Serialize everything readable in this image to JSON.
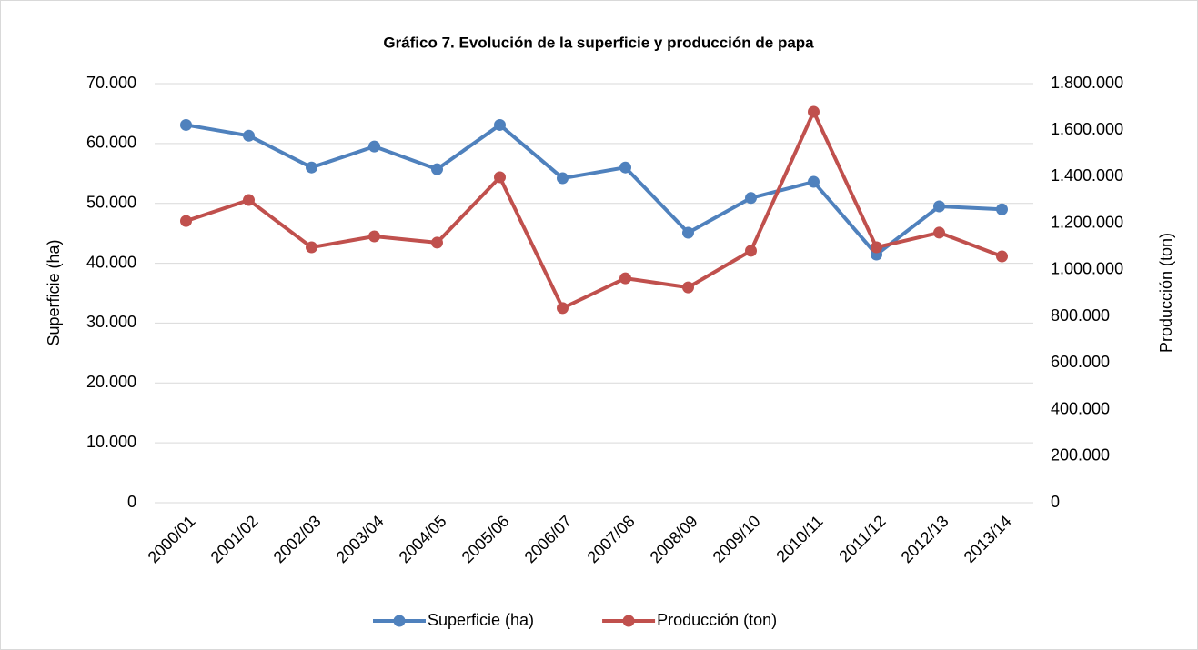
{
  "chart_data": {
    "type": "line",
    "title": "Gráfico 7. Evolución de la superficie y producción de papa",
    "y_label": "Superficie (ha)",
    "y2_label": "Producción (ton)",
    "categories": [
      "2000/01",
      "2001/02",
      "2002/03",
      "2003/04",
      "2004/05",
      "2005/06",
      "2006/07",
      "2007/08",
      "2008/09",
      "2009/10",
      "2010/11",
      "2011/12",
      "2012/13",
      "2013/14"
    ],
    "series": [
      {
        "name": "Superficie (ha)",
        "color": "#4f81bd",
        "values": [
          63100,
          61300,
          56000,
          59500,
          55700,
          63100,
          54200,
          56000,
          45100,
          50900,
          53600,
          41450,
          49500,
          49000
        ]
      },
      {
        "name": "Producción (ton)",
        "color": "#c0504d",
        "axis": "y2",
        "values": [
          1210000,
          1300000,
          1097000,
          1144000,
          1117000,
          1398000,
          836000,
          964000,
          925000,
          1082000,
          1679000,
          1097000,
          1160000,
          1058000
        ]
      }
    ],
    "ylim": [
      0,
      70000
    ],
    "yticks": [
      0,
      {
        "value": 10000,
        "label": "10.000"
      },
      {
        "value": 20000,
        "label": "20.000"
      },
      {
        "value": 30000,
        "label": "30.000"
      },
      {
        "value": 40000,
        "label": "40.000"
      },
      {
        "value": 50000,
        "label": "50.000"
      },
      {
        "value": 60000,
        "label": "60.000"
      },
      {
        "value": 70000,
        "label": "70.000"
      }
    ],
    "y2lim": [
      0,
      1800000
    ],
    "y2ticks": [
      0,
      {
        "value": 200000,
        "label": "200.000"
      },
      {
        "value": 400000,
        "label": "400.000"
      },
      {
        "value": 600000,
        "label": "600.000"
      },
      {
        "value": 800000,
        "label": "800.000"
      },
      {
        "value": 1000000,
        "label": "1.000.000"
      },
      {
        "value": 1200000,
        "label": "1.200.000"
      },
      {
        "value": 1400000,
        "label": "1.400.000"
      },
      {
        "value": 1600000,
        "label": "1.600.000"
      },
      {
        "value": 1800000,
        "label": "1.800.000"
      }
    ],
    "grid": true,
    "legend": "bottom"
  }
}
